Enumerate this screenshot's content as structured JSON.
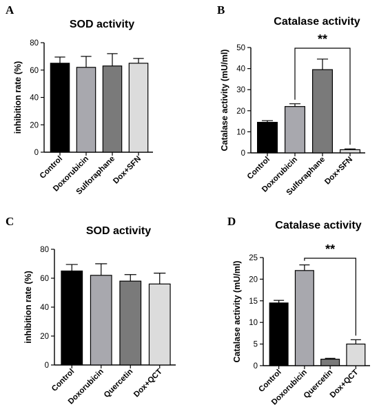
{
  "chart_data": [
    {
      "panel": "A",
      "type": "bar",
      "title": "SOD activity",
      "ylabel": "inhibition rate (%)",
      "categories": [
        "Control",
        "Doxorubicin",
        "Sulforaphane",
        "Dox+SFN"
      ],
      "values": [
        65,
        62,
        63,
        65
      ],
      "errors": [
        4.5,
        8,
        9,
        3.5
      ],
      "colors": [
        "#000000",
        "#a8a8ae",
        "#7a7a7a",
        "#dcdcdc"
      ],
      "ylim": [
        0,
        80
      ],
      "yticks": [
        "0",
        "20",
        "40",
        "60",
        "80"
      ],
      "significance": null
    },
    {
      "panel": "B",
      "type": "bar",
      "title": "Catalase activity",
      "ylabel": "Catalase activity (mU/ml)",
      "categories": [
        "Control",
        "Doxorubicin",
        "Sulforaphane",
        "Dox+SFN"
      ],
      "values": [
        14.5,
        22,
        39.5,
        1.5
      ],
      "errors": [
        0.8,
        1.3,
        5,
        0.4
      ],
      "colors": [
        "#000000",
        "#a8a8ae",
        "#7a7a7a",
        "#dcdcdc"
      ],
      "ylim": [
        0,
        50
      ],
      "yticks": [
        "0",
        "10",
        "20",
        "30",
        "40",
        "50"
      ],
      "significance": {
        "from": 1,
        "to": 3,
        "label": "**"
      }
    },
    {
      "panel": "C",
      "type": "bar",
      "title": "SOD activity",
      "ylabel": "inhibition rate (%)",
      "categories": [
        "Control",
        "Doxorubicin",
        "Quercetin",
        "Dox+QCT"
      ],
      "values": [
        65,
        62,
        58,
        56
      ],
      "errors": [
        4.5,
        8,
        4.5,
        7.5
      ],
      "colors": [
        "#000000",
        "#a8a8ae",
        "#7a7a7a",
        "#dcdcdc"
      ],
      "ylim": [
        0,
        80
      ],
      "yticks": [
        "0",
        "20",
        "40",
        "60",
        "80"
      ],
      "significance": null
    },
    {
      "panel": "D",
      "type": "bar",
      "title": "Catalase activity",
      "ylabel": "Catalase activity (mU/ml)",
      "categories": [
        "Control",
        "Doxorubicin",
        "Quercetin",
        "Dox+QCT"
      ],
      "values": [
        14.5,
        22,
        1.5,
        5
      ],
      "errors": [
        0.6,
        1.3,
        0.2,
        1
      ],
      "colors": [
        "#000000",
        "#a8a8ae",
        "#7a7a7a",
        "#dcdcdc"
      ],
      "ylim": [
        0,
        25
      ],
      "yticks": [
        "0",
        "5",
        "10",
        "15",
        "20",
        "25"
      ],
      "significance": {
        "from": 1,
        "to": 3,
        "label": "**"
      }
    }
  ]
}
